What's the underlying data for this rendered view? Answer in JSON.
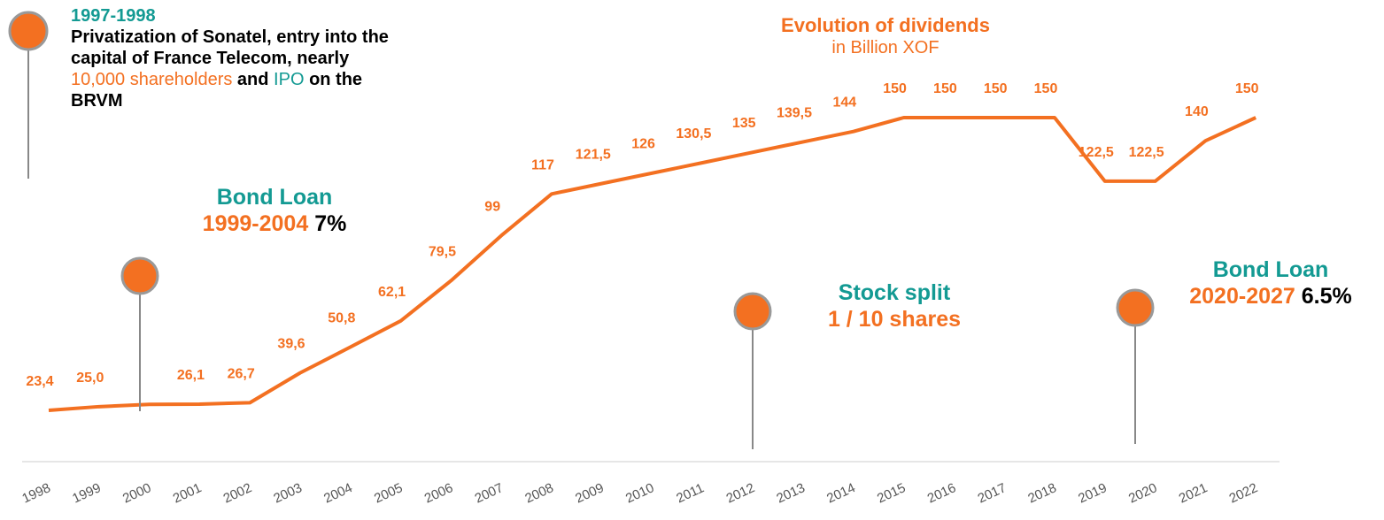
{
  "chart_data": {
    "type": "line",
    "title": "Evolution of dividends",
    "subtitle": "in Billion XOF",
    "categories": [
      "1998",
      "1999",
      "2000",
      "2001",
      "2002",
      "2003",
      "2004",
      "2005",
      "2006",
      "2007",
      "2008",
      "2009",
      "2010",
      "2011",
      "2012",
      "2013",
      "2014",
      "2015",
      "2016",
      "2017",
      "2018",
      "2019",
      "2020",
      "2021",
      "2022"
    ],
    "series": [
      {
        "name": "Dividends",
        "color": "#f37021",
        "values": [
          23.4,
          25.0,
          26.0,
          26.1,
          26.7,
          39.6,
          50.8,
          62.1,
          79.5,
          99,
          117,
          121.5,
          126,
          130.5,
          135,
          139.5,
          144,
          150,
          150,
          150,
          150,
          122.5,
          122.5,
          140,
          150
        ],
        "value_labels": [
          "23,4",
          "25,0",
          null,
          "26,1",
          "26,7",
          "39,6",
          "50,8",
          "62,1",
          "79,5",
          "99",
          "117",
          "121,5",
          "126",
          "130,5",
          "135",
          "139,5",
          "144",
          "150",
          "150",
          "150",
          "150",
          "122,5",
          "122,5",
          "140",
          "150"
        ]
      }
    ],
    "annotations": [
      {
        "title": "1997-1998",
        "text": [
          "Privatization of Sonatel, entry into the capital of France Telecom, nearly",
          "10,000 shareholders",
          "and",
          "IPO",
          "on the BRVM"
        ]
      },
      {
        "title": "Bond Loan",
        "period": "1999-2004",
        "rate": "7%"
      },
      {
        "title": "Stock split",
        "text": "1 / 10 shares"
      },
      {
        "title": "Bond Loan",
        "period": "2020-2027",
        "rate": "6.5%"
      }
    ]
  }
}
